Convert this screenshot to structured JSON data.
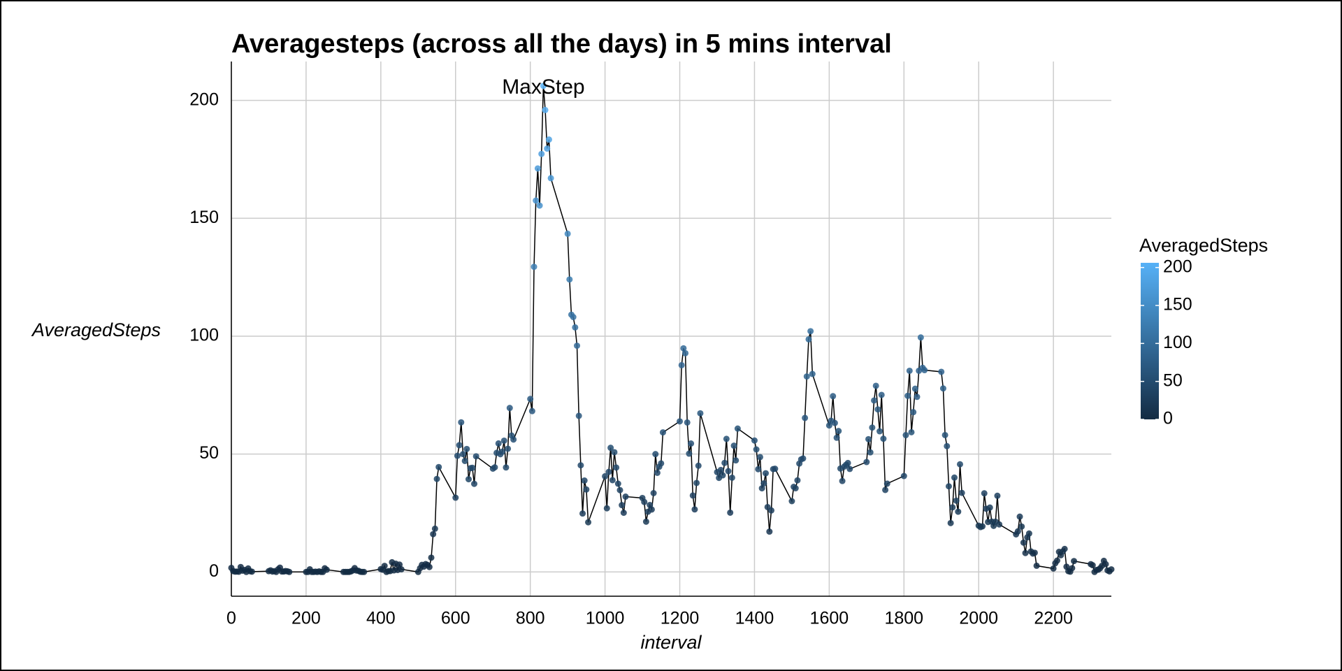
{
  "chart_data": {
    "type": "line_scatter",
    "title": "Averagesteps (across all the days) in 5 mins interval",
    "x_label": "interval",
    "y_label": "AveragedSteps",
    "legend_title": "AveragedSteps",
    "legend_ticks": [
      0,
      50,
      100,
      150,
      200
    ],
    "color_low": "#132B43",
    "color_high": "#56B1F7",
    "line_color": "#000000",
    "annotation": {
      "text": "MaxStep",
      "x": 835,
      "y": 206.17
    },
    "xlim": [
      0,
      2355
    ],
    "ylim": [
      -10.3,
      216.5
    ],
    "xticks": [
      0,
      200,
      400,
      600,
      800,
      1000,
      1200,
      1400,
      1600,
      1800,
      2000,
      2200
    ],
    "yticks": [
      0,
      50,
      100,
      150,
      200
    ],
    "grid": true,
    "x": [
      0,
      5,
      10,
      15,
      20,
      25,
      30,
      35,
      40,
      45,
      50,
      55,
      100,
      105,
      110,
      115,
      120,
      125,
      130,
      135,
      140,
      145,
      150,
      155,
      200,
      205,
      210,
      215,
      220,
      225,
      230,
      235,
      240,
      245,
      250,
      255,
      300,
      305,
      310,
      315,
      320,
      325,
      330,
      335,
      340,
      345,
      350,
      355,
      400,
      405,
      410,
      415,
      420,
      425,
      430,
      435,
      440,
      445,
      450,
      455,
      500,
      505,
      510,
      515,
      520,
      525,
      530,
      535,
      540,
      545,
      550,
      555,
      600,
      605,
      610,
      615,
      620,
      625,
      630,
      635,
      640,
      645,
      650,
      655,
      700,
      705,
      710,
      715,
      720,
      725,
      730,
      735,
      740,
      745,
      750,
      755,
      800,
      805,
      810,
      815,
      820,
      825,
      830,
      835,
      840,
      845,
      850,
      855,
      900,
      905,
      910,
      915,
      920,
      925,
      930,
      935,
      940,
      945,
      950,
      955,
      1000,
      1005,
      1010,
      1015,
      1020,
      1025,
      1030,
      1035,
      1040,
      1045,
      1050,
      1055,
      1100,
      1105,
      1110,
      1115,
      1120,
      1125,
      1130,
      1135,
      1140,
      1145,
      1150,
      1155,
      1200,
      1205,
      1210,
      1215,
      1220,
      1225,
      1230,
      1235,
      1240,
      1245,
      1250,
      1255,
      1300,
      1305,
      1310,
      1315,
      1320,
      1325,
      1330,
      1335,
      1340,
      1345,
      1350,
      1355,
      1400,
      1405,
      1410,
      1415,
      1420,
      1425,
      1430,
      1435,
      1440,
      1445,
      1450,
      1455,
      1500,
      1505,
      1510,
      1515,
      1520,
      1525,
      1530,
      1535,
      1540,
      1545,
      1550,
      1555,
      1600,
      1605,
      1610,
      1615,
      1620,
      1625,
      1630,
      1635,
      1640,
      1645,
      1650,
      1655,
      1700,
      1705,
      1710,
      1715,
      1720,
      1725,
      1730,
      1735,
      1740,
      1745,
      1750,
      1755,
      1800,
      1805,
      1810,
      1815,
      1820,
      1825,
      1830,
      1835,
      1840,
      1845,
      1850,
      1855,
      1900,
      1905,
      1910,
      1915,
      1920,
      1925,
      1930,
      1935,
      1940,
      1945,
      1950,
      1955,
      2000,
      2005,
      2010,
      2015,
      2020,
      2025,
      2030,
      2035,
      2040,
      2045,
      2050,
      2055,
      2100,
      2105,
      2110,
      2115,
      2120,
      2125,
      2130,
      2135,
      2140,
      2145,
      2150,
      2155,
      2200,
      2205,
      2210,
      2215,
      2220,
      2225,
      2230,
      2235,
      2240,
      2245,
      2250,
      2255,
      2300,
      2305,
      2310,
      2315,
      2320,
      2325,
      2330,
      2335,
      2340,
      2345,
      2350,
      2355
    ],
    "values": [
      1.72,
      0.34,
      0.13,
      0.15,
      0.08,
      2.09,
      0.53,
      0.87,
      0,
      1.47,
      0.3,
      0.13,
      0.32,
      0.68,
      0.15,
      0.34,
      0,
      1.11,
      1.83,
      0.17,
      0.17,
      0.38,
      0.26,
      0,
      0,
      0,
      1.13,
      0,
      0,
      0.13,
      0,
      0.23,
      0,
      0,
      1.55,
      0.94,
      0,
      0,
      0,
      0,
      0.21,
      0.62,
      1.62,
      0.58,
      0.49,
      0.08,
      0,
      0,
      1.19,
      0.94,
      2.57,
      0,
      0.34,
      0.36,
      4.11,
      0.66,
      3.49,
      0.83,
      3.11,
      1.11,
      0,
      1.57,
      3,
      2.25,
      3.32,
      2.96,
      2.09,
      6.06,
      16.02,
      18.34,
      39.45,
      44.49,
      31.49,
      49.26,
      53.77,
      63.45,
      49.96,
      47.08,
      52.15,
      39.34,
      44.02,
      44.17,
      37.36,
      49.04,
      43.81,
      44.38,
      50.51,
      54.51,
      49.92,
      50.98,
      55.68,
      44.32,
      52.26,
      69.55,
      57.85,
      56.15,
      73.38,
      68.21,
      129.43,
      157.53,
      171.15,
      155.4,
      177.3,
      206.17,
      195.92,
      179.57,
      183.4,
      167.02,
      143.45,
      124.04,
      109.11,
      108.11,
      103.72,
      95.96,
      66.21,
      45.23,
      24.79,
      38.75,
      34.98,
      21.06,
      40.57,
      26.98,
      42.42,
      52.66,
      38.92,
      50.79,
      44.28,
      37.42,
      34.7,
      28.34,
      25.09,
      31.94,
      31.36,
      29.68,
      21.32,
      25.55,
      28.38,
      26.47,
      33.43,
      49.98,
      42.04,
      44.6,
      46.04,
      59.19,
      63.87,
      87.7,
      94.85,
      92.77,
      63.4,
      50.17,
      54.47,
      32.42,
      26.53,
      37.74,
      45.06,
      67.28,
      42.34,
      39.89,
      43.26,
      40.98,
      46.25,
      56.43,
      42.75,
      25.13,
      39.96,
      53.55,
      47.32,
      60.81,
      55.75,
      51.96,
      43.58,
      48.7,
      35.47,
      37.55,
      41.85,
      27.51,
      17.11,
      26.08,
      43.62,
      43.77,
      30.02,
      36.08,
      35.49,
      38.85,
      45.96,
      47.75,
      48.13,
      65.32,
      82.91,
      98.66,
      102.11,
      83.96,
      62.13,
      64.13,
      74.55,
      63.17,
      56.91,
      59.77,
      43.87,
      38.57,
      44.66,
      45.45,
      46.21,
      43.68,
      46.62,
      56.3,
      50.72,
      61.23,
      72.72,
      78.94,
      68.94,
      59.66,
      75.09,
      56.51,
      34.77,
      37.45,
      40.68,
      58.02,
      74.7,
      85.32,
      59.26,
      67.77,
      77.7,
      74.25,
      85.34,
      99.45,
      86.58,
      85.6,
      84.87,
      77.83,
      58.04,
      53.36,
      36.32,
      20.72,
      27.4,
      40.02,
      30.21,
      25.55,
      45.66,
      33.53,
      19.62,
      19.02,
      19.34,
      33.34,
      26.81,
      21.17,
      27.3,
      21.34,
      19.55,
      21.32,
      32.3,
      20.15,
      15.94,
      17.23,
      23.45,
      19.25,
      12.45,
      8.02,
      14.66,
      16.3,
      8.68,
      7.79,
      8.13,
      2.62,
      1.45,
      3.68,
      4.81,
      8.51,
      7.08,
      8.7,
      9.75,
      2.21,
      0.32,
      0.11,
      1.6,
      4.6,
      3.3,
      2.85,
      0,
      0.83,
      0.96,
      1.58,
      2.6,
      4.7,
      3.3,
      0.64,
      0.23,
      1.08
    ]
  }
}
